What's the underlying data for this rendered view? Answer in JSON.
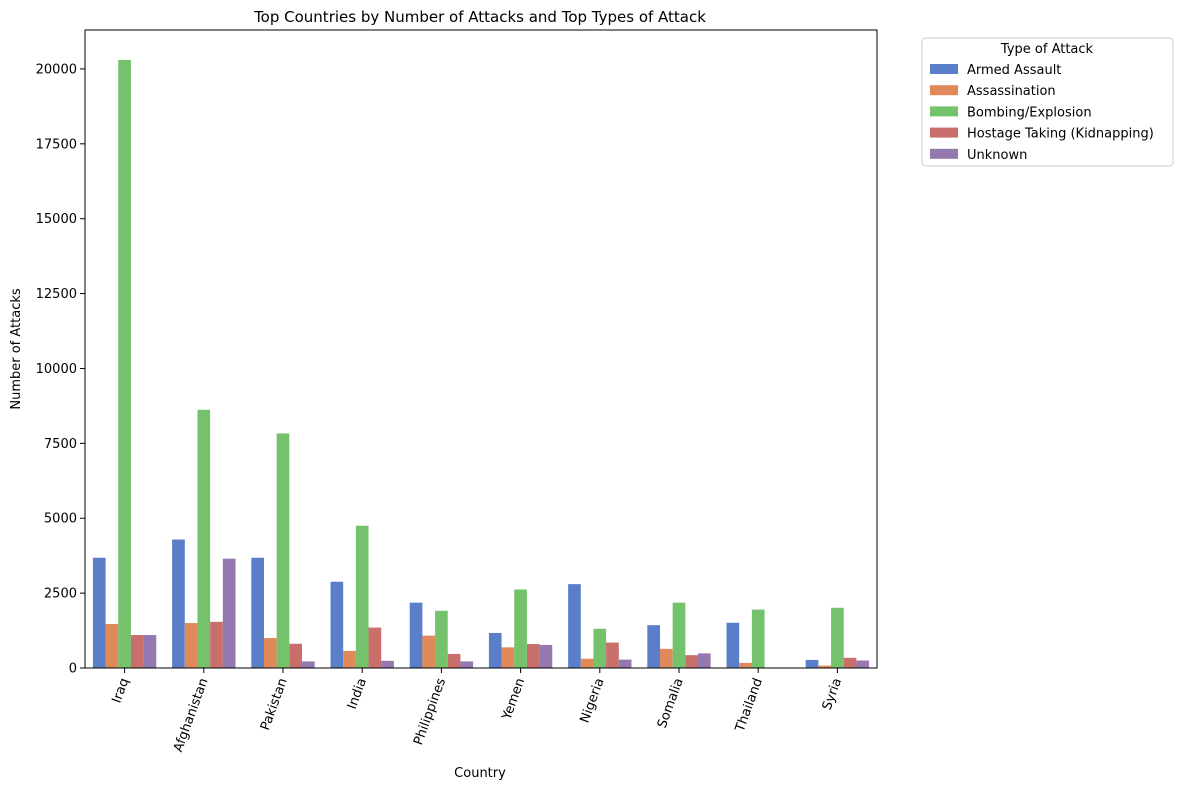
{
  "chart_data": {
    "type": "bar",
    "title": "Top Countries by Number of Attacks and Top Types of Attack",
    "xlabel": "Country",
    "ylabel": "Number of Attacks",
    "ylim": [
      0,
      21300
    ],
    "yticks": [
      0,
      2500,
      5000,
      7500,
      10000,
      12500,
      15000,
      17500,
      20000
    ],
    "grid": false,
    "legend_title": "Type of Attack",
    "legend_position": "outside-top-right",
    "categories": [
      "Iraq",
      "Afghanistan",
      "Pakistan",
      "India",
      "Philippines",
      "Yemen",
      "Nigeria",
      "Somalia",
      "Thailand",
      "Syria"
    ],
    "series": [
      {
        "name": "Armed Assault",
        "color": "#5a7fc8",
        "values": [
          3680,
          4290,
          3680,
          2880,
          2180,
          1170,
          2800,
          1430,
          1510,
          270
        ]
      },
      {
        "name": "Assassination",
        "color": "#e0895b",
        "values": [
          1470,
          1500,
          1000,
          570,
          1080,
          690,
          310,
          640,
          170,
          80
        ]
      },
      {
        "name": "Bombing/Explosion",
        "color": "#74c26c",
        "values": [
          20300,
          8620,
          7830,
          4750,
          1910,
          2620,
          1310,
          2180,
          1950,
          2010
        ]
      },
      {
        "name": "Hostage Taking (Kidnapping)",
        "color": "#c86f6c",
        "values": [
          1100,
          1540,
          810,
          1350,
          470,
          800,
          850,
          430,
          0,
          340
        ]
      },
      {
        "name": "Unknown",
        "color": "#9379b0",
        "values": [
          1100,
          3650,
          220,
          240,
          220,
          770,
          280,
          490,
          0,
          250
        ]
      }
    ]
  }
}
